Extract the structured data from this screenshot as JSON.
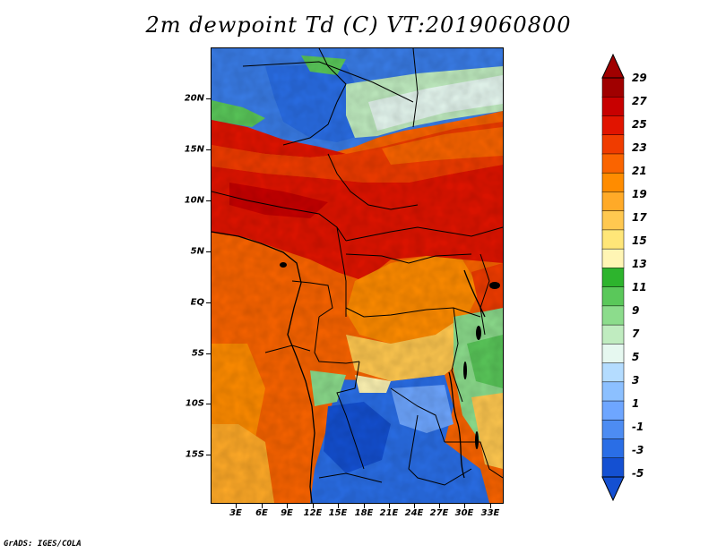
{
  "title": "2m dewpoint Td (C) VT:2019060800",
  "credit": "GrADS: IGES/COLA",
  "map": {
    "lat_labels": [
      "20N",
      "15N",
      "10N",
      "5N",
      "EQ",
      "5S",
      "10S",
      "15S"
    ],
    "lon_labels": [
      "3E",
      "6E",
      "9E",
      "12E",
      "15E",
      "18E",
      "21E",
      "24E",
      "27E",
      "30E",
      "33E"
    ]
  },
  "colorbar": {
    "labels": [
      "29",
      "27",
      "25",
      "23",
      "21",
      "19",
      "17",
      "15",
      "13",
      "11",
      "9",
      "7",
      "5",
      "3",
      "1",
      "-1",
      "-3",
      "-5"
    ],
    "colors": [
      "#a00000",
      "#c80000",
      "#e11400",
      "#f03c00",
      "#fa6400",
      "#ff8c00",
      "#ffaa28",
      "#ffc850",
      "#ffe678",
      "#fff5b4",
      "#2db42d",
      "#5ac85a",
      "#8cdc8c",
      "#c0ecc0",
      "#e6f8f0",
      "#b4dcff",
      "#8cc0ff",
      "#6ea6ff",
      "#4d8cf2",
      "#2a6ee6",
      "#1450d2"
    ]
  },
  "legend": {
    "upper_arrow_color": "#a00000",
    "lower_arrow_color": "#1450d2"
  },
  "chart_data": {
    "type": "heatmap",
    "title": "2m dewpoint Td (C) VT:2019060800",
    "variable": "2m dewpoint temperature",
    "units": "C",
    "valid_time": "2019060800",
    "lat_range": [
      "19S",
      "24N"
    ],
    "lon_range": [
      "1E",
      "35E"
    ],
    "contour_levels": [
      -5,
      -3,
      -1,
      1,
      3,
      5,
      7,
      9,
      11,
      13,
      15,
      17,
      19,
      21,
      23,
      25,
      27,
      29
    ]
  }
}
